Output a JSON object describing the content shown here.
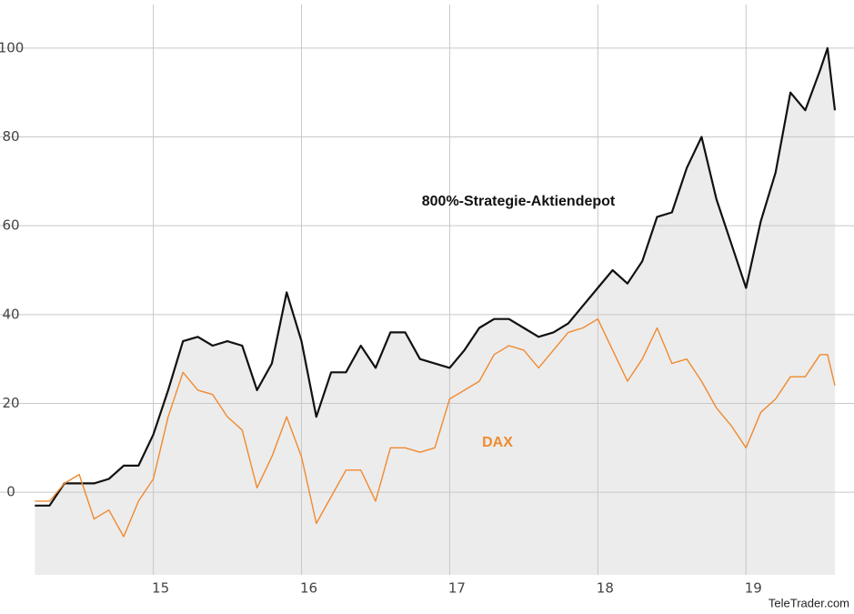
{
  "chart_data": {
    "type": "line",
    "annotations": [
      "800%-Strategie-Aktiendepot",
      "DAX"
    ],
    "source": "TeleTrader.com",
    "x": [
      2014.2,
      2014.3,
      2014.4,
      2014.5,
      2014.6,
      2014.7,
      2014.8,
      2014.9,
      2015.0,
      2015.1,
      2015.2,
      2015.3,
      2015.4,
      2015.5,
      2015.6,
      2015.7,
      2015.8,
      2015.9,
      2016.0,
      2016.1,
      2016.2,
      2016.3,
      2016.4,
      2016.5,
      2016.6,
      2016.7,
      2016.8,
      2016.9,
      2017.0,
      2017.1,
      2017.2,
      2017.3,
      2017.4,
      2017.5,
      2017.6,
      2017.7,
      2017.8,
      2017.9,
      2018.0,
      2018.1,
      2018.2,
      2018.3,
      2018.4,
      2018.5,
      2018.6,
      2018.7,
      2018.8,
      2018.9,
      2019.0,
      2019.1,
      2019.2,
      2019.3,
      2019.4,
      2019.5,
      2019.55,
      2019.6
    ],
    "series": [
      {
        "color": "#111111",
        "fill": "#ececec",
        "values": [
          -3,
          -3,
          2,
          2,
          2,
          3,
          6,
          6,
          13,
          23,
          34,
          35,
          33,
          34,
          33,
          23,
          29,
          45,
          34,
          17,
          27,
          27,
          33,
          28,
          36,
          36,
          30,
          29,
          28,
          32,
          37,
          39,
          39,
          37,
          35,
          36,
          38,
          42,
          46,
          50,
          47,
          52,
          62,
          63,
          73,
          80,
          66,
          56,
          46,
          61,
          72,
          90,
          86,
          95,
          100,
          86
        ]
      },
      {
        "color": "#f08a30",
        "values": [
          -2,
          -2,
          2,
          4,
          -6,
          -4,
          -10,
          -2,
          3,
          17,
          27,
          23,
          22,
          17,
          14,
          1,
          8,
          17,
          8,
          -7,
          -1,
          5,
          5,
          -2,
          10,
          10,
          9,
          10,
          21,
          23,
          25,
          31,
          33,
          32,
          28,
          32,
          36,
          37,
          39,
          32,
          25,
          30,
          37,
          29,
          30,
          25,
          19,
          15,
          10,
          18,
          21,
          26,
          26,
          31,
          31,
          24
        ]
      }
    ],
    "xlim": [
      2014.18,
      2019.6
    ],
    "xticks": [
      {
        "value": 2015,
        "label": "15"
      },
      {
        "value": 2016,
        "label": "16"
      },
      {
        "value": 2017,
        "label": "17"
      },
      {
        "value": 2018,
        "label": "18"
      },
      {
        "value": 2019,
        "label": "19"
      }
    ],
    "ylim": [
      -18.6,
      109.8
    ],
    "yticks": [
      0,
      20,
      40,
      60,
      80,
      100
    ],
    "grid": true
  }
}
